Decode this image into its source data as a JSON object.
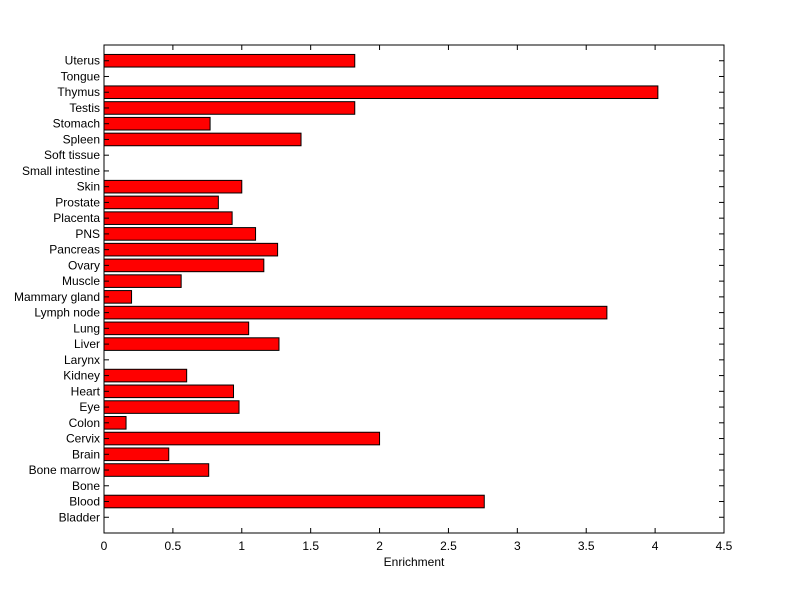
{
  "chart_data": {
    "type": "bar",
    "orientation": "horizontal",
    "title": "",
    "xlabel": "Enrichment",
    "ylabel": "",
    "xlim": [
      0,
      4.5
    ],
    "xticks": [
      "0",
      "0.5",
      "1",
      "1.5",
      "2",
      "2.5",
      "3",
      "3.5",
      "4",
      "4.5"
    ],
    "categories": [
      "Bladder",
      "Blood",
      "Bone",
      "Bone marrow",
      "Brain",
      "Cervix",
      "Colon",
      "Eye",
      "Heart",
      "Kidney",
      "Larynx",
      "Liver",
      "Lung",
      "Lymph node",
      "Mammary gland",
      "Muscle",
      "Ovary",
      "Pancreas",
      "PNS",
      "Placenta",
      "Prostate",
      "Skin",
      "Small intestine",
      "Soft tissue",
      "Spleen",
      "Stomach",
      "Testis",
      "Thymus",
      "Tongue",
      "Uterus"
    ],
    "values": [
      0,
      2.76,
      0,
      0.76,
      0.47,
      2.0,
      0.16,
      0.98,
      0.94,
      0.6,
      0,
      1.27,
      1.05,
      3.65,
      0.2,
      0.56,
      1.16,
      1.26,
      1.1,
      0.93,
      0.83,
      1.0,
      0,
      0,
      1.43,
      0.77,
      1.82,
      4.02,
      0,
      1.82
    ],
    "grid": false,
    "legend": "none",
    "colors": {
      "bar_fill": "#ff0000",
      "bar_edge": "#000000",
      "axis": "#000000"
    }
  }
}
